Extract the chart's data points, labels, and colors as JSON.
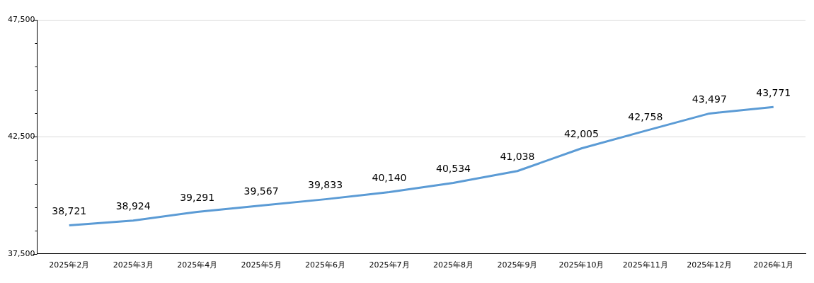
{
  "chart_data": {
    "type": "line",
    "categories": [
      "2025年2月",
      "2025年3月",
      "2025年4月",
      "2025年5月",
      "2025年6月",
      "2025年7月",
      "2025年8月",
      "2025年9月",
      "2025年10月",
      "2025年11月",
      "2025年12月",
      "2026年1月"
    ],
    "series": [
      {
        "color": "#5b9bd5",
        "values": [
          38721,
          38924,
          39291,
          39567,
          39833,
          40140,
          40534,
          41038,
          42005,
          42758,
          43497,
          43771
        ],
        "value_labels": [
          "38,721",
          "38,924",
          "39,291",
          "39,567",
          "39,833",
          "40,140",
          "40,534",
          "41,038",
          "42,005",
          "42,758",
          "43,497",
          "43,771"
        ]
      }
    ],
    "ylim": [
      37500,
      47500
    ],
    "yticks": [
      {
        "value": 37500,
        "label": "37,500"
      },
      {
        "value": 38500,
        "label": null
      },
      {
        "value": 39500,
        "label": null
      },
      {
        "value": 40500,
        "label": null
      },
      {
        "value": 41500,
        "label": null
      },
      {
        "value": 42500,
        "label": "42,500"
      },
      {
        "value": 43500,
        "label": null
      },
      {
        "value": 44500,
        "label": null
      },
      {
        "value": 45500,
        "label": null
      },
      {
        "value": 46500,
        "label": null
      },
      {
        "value": 47500,
        "label": "47,500"
      }
    ],
    "grid": "y",
    "marker": "none",
    "line_style": "solid",
    "legend": false
  }
}
